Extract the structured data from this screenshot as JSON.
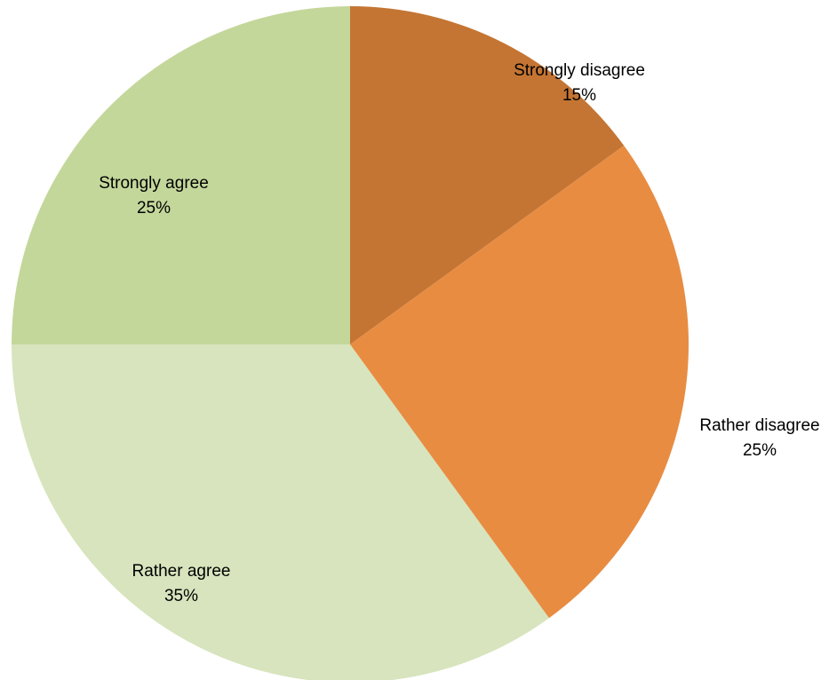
{
  "chart_data": {
    "type": "pie",
    "title": "",
    "categories": [
      "Strongly disagree",
      "Rather disagree",
      "Rather agree",
      "Strongly agree"
    ],
    "values": [
      15,
      25,
      35,
      25
    ],
    "value_labels": [
      "15%",
      "25%",
      "35%",
      "25%"
    ],
    "colors": [
      "#C47533",
      "#E88C42",
      "#D7E4BD",
      "#C4D79B"
    ],
    "start_angle": "12 o'clock",
    "direction": "clockwise",
    "legend": "none",
    "data_labels": "category name and percentage"
  }
}
